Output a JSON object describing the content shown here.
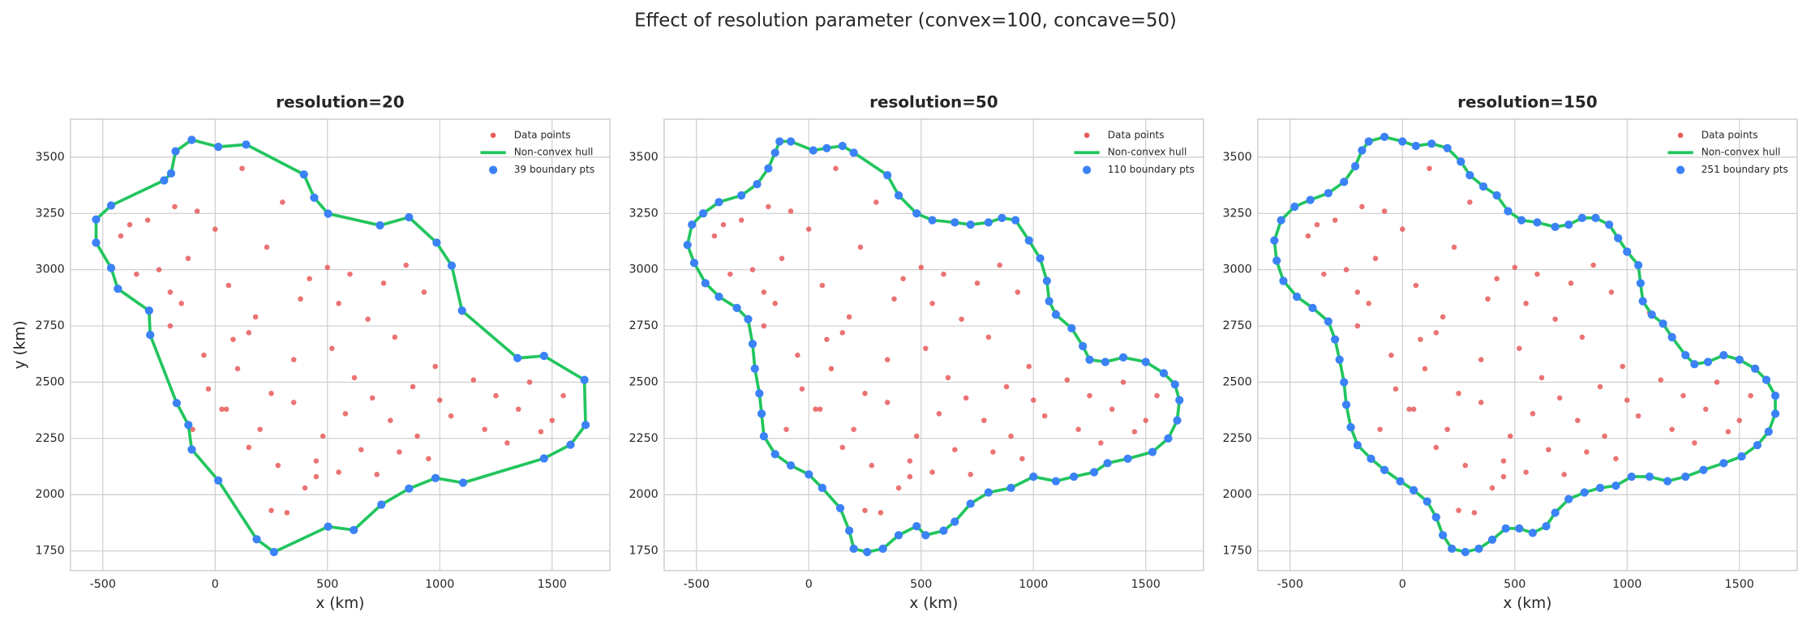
{
  "title": "Effect of resolution parameter (convex=100, concave=50)",
  "chart_data": [
    {
      "type": "scatter",
      "title": "resolution=20",
      "xlabel": "x (km)",
      "ylabel": "y (km)",
      "xlim": [
        -644,
        1757
      ],
      "ylim": [
        1663,
        3669
      ],
      "xticks": [
        -500,
        0,
        500,
        1000,
        1500
      ],
      "yticks": [
        1750,
        2000,
        2250,
        2500,
        2750,
        3000,
        3250,
        3500
      ],
      "grid": true,
      "legend": "upper right",
      "series": [
        {
          "name": "Data points",
          "color": "#e85b5b",
          "x": [
            -420,
            -380,
            -350,
            -300,
            -250,
            -200,
            -180,
            -150,
            -120,
            -80,
            -50,
            -30,
            0,
            30,
            60,
            80,
            100,
            120,
            150,
            180,
            200,
            230,
            250,
            280,
            300,
            320,
            350,
            380,
            400,
            420,
            450,
            480,
            500,
            520,
            550,
            580,
            600,
            620,
            650,
            680,
            700,
            720,
            750,
            780,
            800,
            820,
            850,
            880,
            900,
            930,
            950,
            980,
            1000,
            1050,
            1100,
            1150,
            1200,
            1250,
            1300,
            1350,
            1400,
            1450,
            1500,
            1550,
            -200,
            -100,
            50,
            150,
            250,
            350,
            450,
            550
          ],
          "y": [
            3150,
            3200,
            2980,
            3220,
            3000,
            2900,
            3280,
            2850,
            3050,
            3260,
            2620,
            2470,
            3180,
            2380,
            2930,
            2690,
            2560,
            3450,
            2210,
            2790,
            2290,
            3100,
            2450,
            2130,
            3300,
            1920,
            2600,
            2870,
            2030,
            2960,
            2080,
            2260,
            3010,
            2650,
            2100,
            2360,
            2980,
            2520,
            2200,
            2780,
            2430,
            2090,
            2940,
            2330,
            2700,
            2190,
            3020,
            2480,
            2260,
            2900,
            2160,
            2570,
            2420,
            2350,
            2810,
            2510,
            2290,
            2440,
            2230,
            2380,
            2500,
            2280,
            2330,
            2440,
            2750,
            2290,
            2380,
            2720,
            1930,
            2410,
            2150,
            2850
          ]
        },
        {
          "name": "Non-convex hull",
          "color": "#22c55e",
          "x": [
            -104,
            14,
            138,
            395,
            441,
            503,
            734,
            863,
            986,
            1053,
            1099,
            1346,
            1464,
            1644,
            1649,
            1582,
            1464,
            1104,
            981,
            863,
            740,
            617,
            503,
            262,
            185,
            14,
            -104,
            -119,
            -171,
            -289,
            -294,
            -433,
            -463,
            -530,
            -530,
            -463,
            -227,
            -196,
            -176
          ],
          "y": [
            3577,
            3546,
            3556,
            3423,
            3320,
            3249,
            3197,
            3233,
            3120,
            3018,
            2818,
            2607,
            2617,
            2510,
            2310,
            2222,
            2161,
            2053,
            2074,
            2027,
            1956,
            1843,
            1858,
            1745,
            1802,
            2063,
            2201,
            2310,
            2407,
            2710,
            2818,
            2915,
            3008,
            3120,
            3223,
            3285,
            3397,
            3428,
            3526
          ]
        },
        {
          "name": "39 boundary pts",
          "color": "#3b82f6"
        }
      ]
    },
    {
      "type": "scatter",
      "title": "resolution=50",
      "xlabel": "x (km)",
      "xlim": [
        -644,
        1757
      ],
      "ylim": [
        1663,
        3669
      ],
      "xticks": [
        -500,
        0,
        500,
        1000,
        1500
      ],
      "yticks": [
        1750,
        2000,
        2250,
        2500,
        2750,
        3000,
        3250,
        3500
      ],
      "grid": true,
      "legend": "upper right",
      "series": [
        {
          "name": "Data points",
          "color": "#e85b5b",
          "x": [
            -420,
            -380,
            -350,
            -300,
            -250,
            -200,
            -180,
            -150,
            -120,
            -80,
            -50,
            -30,
            0,
            30,
            60,
            80,
            100,
            120,
            150,
            180,
            200,
            230,
            250,
            280,
            300,
            320,
            350,
            380,
            400,
            420,
            450,
            480,
            500,
            520,
            550,
            580,
            600,
            620,
            650,
            680,
            700,
            720,
            750,
            780,
            800,
            820,
            850,
            880,
            900,
            930,
            950,
            980,
            1000,
            1050,
            1100,
            1150,
            1200,
            1250,
            1300,
            1350,
            1400,
            1450,
            1500,
            1550,
            -200,
            -100,
            50,
            150,
            250,
            350,
            450,
            550
          ],
          "y": [
            3150,
            3200,
            2980,
            3220,
            3000,
            2900,
            3280,
            2850,
            3050,
            3260,
            2620,
            2470,
            3180,
            2380,
            2930,
            2690,
            2560,
            3450,
            2210,
            2790,
            2290,
            3100,
            2450,
            2130,
            3300,
            1920,
            2600,
            2870,
            2030,
            2960,
            2080,
            2260,
            3010,
            2650,
            2100,
            2360,
            2980,
            2520,
            2200,
            2780,
            2430,
            2090,
            2940,
            2330,
            2700,
            2190,
            3020,
            2480,
            2260,
            2900,
            2160,
            2570,
            2420,
            2350,
            2810,
            2510,
            2290,
            2440,
            2230,
            2380,
            2500,
            2280,
            2330,
            2440,
            2750,
            2290,
            2380,
            2720,
            1930,
            2410,
            2150,
            2850
          ]
        },
        {
          "name": "Non-convex hull",
          "color": "#22c55e",
          "x": [
            -130,
            -80,
            20,
            80,
            150,
            200,
            350,
            400,
            480,
            550,
            650,
            720,
            800,
            860,
            920,
            980,
            1030,
            1060,
            1070,
            1100,
            1170,
            1220,
            1250,
            1320,
            1400,
            1500,
            1580,
            1630,
            1650,
            1640,
            1600,
            1530,
            1420,
            1330,
            1270,
            1180,
            1100,
            1000,
            900,
            800,
            720,
            650,
            600,
            520,
            480,
            400,
            330,
            260,
            200,
            180,
            140,
            60,
            0,
            -80,
            -150,
            -200,
            -210,
            -220,
            -240,
            -250,
            -270,
            -320,
            -400,
            -460,
            -510,
            -540,
            -520,
            -470,
            -400,
            -300,
            -230,
            -180,
            -150
          ],
          "y": [
            3570,
            3570,
            3530,
            3540,
            3550,
            3520,
            3420,
            3330,
            3250,
            3220,
            3210,
            3200,
            3210,
            3230,
            3220,
            3130,
            3050,
            2950,
            2860,
            2800,
            2740,
            2660,
            2600,
            2590,
            2610,
            2590,
            2540,
            2490,
            2420,
            2330,
            2250,
            2190,
            2160,
            2140,
            2100,
            2080,
            2060,
            2080,
            2030,
            2010,
            1960,
            1880,
            1840,
            1820,
            1860,
            1820,
            1760,
            1745,
            1760,
            1840,
            1940,
            2030,
            2090,
            2130,
            2180,
            2260,
            2360,
            2450,
            2560,
            2670,
            2780,
            2830,
            2880,
            2940,
            3030,
            3110,
            3200,
            3250,
            3300,
            3330,
            3380,
            3450,
            3520
          ]
        },
        {
          "name": "110 boundary pts",
          "color": "#3b82f6"
        }
      ]
    },
    {
      "type": "scatter",
      "title": "resolution=150",
      "xlabel": "x (km)",
      "xlim": [
        -644,
        1757
      ],
      "ylim": [
        1663,
        3669
      ],
      "xticks": [
        -500,
        0,
        500,
        1000,
        1500
      ],
      "yticks": [
        1750,
        2000,
        2250,
        2500,
        2750,
        3000,
        3250,
        3500
      ],
      "grid": true,
      "legend": "upper right",
      "series": [
        {
          "name": "Data points",
          "color": "#e85b5b",
          "x": [
            -420,
            -380,
            -350,
            -300,
            -250,
            -200,
            -180,
            -150,
            -120,
            -80,
            -50,
            -30,
            0,
            30,
            60,
            80,
            100,
            120,
            150,
            180,
            200,
            230,
            250,
            280,
            300,
            320,
            350,
            380,
            400,
            420,
            450,
            480,
            500,
            520,
            550,
            580,
            600,
            620,
            650,
            680,
            700,
            720,
            750,
            780,
            800,
            820,
            850,
            880,
            900,
            930,
            950,
            980,
            1000,
            1050,
            1100,
            1150,
            1200,
            1250,
            1300,
            1350,
            1400,
            1450,
            1500,
            1550,
            -200,
            -100,
            50,
            150,
            250,
            350,
            450,
            550
          ],
          "y": [
            3150,
            3200,
            2980,
            3220,
            3000,
            2900,
            3280,
            2850,
            3050,
            3260,
            2620,
            2470,
            3180,
            2380,
            2930,
            2690,
            2560,
            3450,
            2210,
            2790,
            2290,
            3100,
            2450,
            2130,
            3300,
            1920,
            2600,
            2870,
            2030,
            2960,
            2080,
            2260,
            3010,
            2650,
            2100,
            2360,
            2980,
            2520,
            2200,
            2780,
            2430,
            2090,
            2940,
            2330,
            2700,
            2190,
            3020,
            2480,
            2260,
            2900,
            2160,
            2570,
            2420,
            2350,
            2810,
            2510,
            2290,
            2440,
            2230,
            2380,
            2500,
            2280,
            2330,
            2440,
            2750,
            2290,
            2380,
            2720,
            1930,
            2410,
            2150,
            2850
          ]
        },
        {
          "name": "Non-convex hull",
          "color": "#22c55e",
          "x": [
            -150,
            -80,
            0,
            60,
            130,
            200,
            260,
            300,
            360,
            420,
            470,
            530,
            600,
            680,
            740,
            800,
            860,
            920,
            960,
            1000,
            1050,
            1060,
            1070,
            1110,
            1160,
            1200,
            1260,
            1300,
            1360,
            1430,
            1500,
            1570,
            1620,
            1660,
            1660,
            1630,
            1580,
            1510,
            1430,
            1340,
            1260,
            1180,
            1100,
            1020,
            950,
            880,
            810,
            740,
            680,
            640,
            580,
            520,
            460,
            400,
            340,
            280,
            220,
            180,
            150,
            110,
            50,
            -10,
            -80,
            -140,
            -200,
            -230,
            -250,
            -260,
            -280,
            -300,
            -330,
            -400,
            -470,
            -530,
            -560,
            -570,
            -540,
            -480,
            -410,
            -330,
            -260,
            -210,
            -180
          ],
          "y": [
            3570,
            3590,
            3570,
            3550,
            3560,
            3540,
            3480,
            3420,
            3370,
            3330,
            3260,
            3220,
            3210,
            3190,
            3200,
            3230,
            3230,
            3200,
            3140,
            3080,
            3020,
            2940,
            2860,
            2800,
            2760,
            2700,
            2620,
            2580,
            2590,
            2620,
            2600,
            2560,
            2510,
            2440,
            2360,
            2280,
            2220,
            2170,
            2140,
            2110,
            2080,
            2060,
            2080,
            2080,
            2040,
            2030,
            2010,
            1980,
            1920,
            1860,
            1830,
            1850,
            1850,
            1800,
            1760,
            1745,
            1760,
            1820,
            1900,
            1970,
            2020,
            2060,
            2110,
            2160,
            2220,
            2300,
            2400,
            2500,
            2600,
            2690,
            2770,
            2830,
            2880,
            2950,
            3040,
            3130,
            3220,
            3280,
            3310,
            3340,
            3390,
            3460,
            3530
          ]
        },
        {
          "name": "251 boundary pts",
          "color": "#3b82f6"
        }
      ]
    }
  ]
}
